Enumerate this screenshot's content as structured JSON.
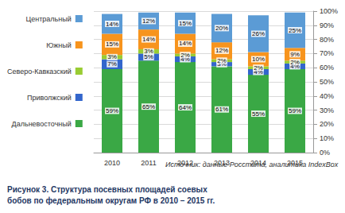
{
  "chart_data": {
    "type": "bar",
    "title": "Рисунок 3. Структура посевных площадей соевых бобов по федеральным округам РФ в 2010 – 2015 гг.",
    "source": "Источник: данные Росстата, аналитика IndexBox",
    "categories": [
      "2010",
      "2011",
      "2012",
      "2013",
      "2014",
      "2015"
    ],
    "stacked": true,
    "data_labels": true,
    "grid": true,
    "legend": "left",
    "series": [
      {
        "name": "Дальневосточный",
        "color": "#3aa845",
        "values": [
          59,
          65,
          64,
          61,
          55,
          59
        ],
        "value_labels": [
          "59%",
          "65%",
          "64%",
          "61%",
          "55%",
          "59%"
        ]
      },
      {
        "name": "Приволжский",
        "color": "#3366cc",
        "values": [
          7,
          5,
          4,
          3,
          4,
          4
        ],
        "value_labels": [
          "7%",
          "5%",
          "4%",
          "3%",
          "4%",
          "4%"
        ]
      },
      {
        "name": "Северо-Кавказский",
        "color": "#99cc33",
        "values": [
          3,
          3,
          2,
          2,
          2,
          2
        ],
        "value_labels": [
          "3%",
          "3%",
          "2%",
          "2%",
          "2%",
          "2%"
        ]
      },
      {
        "name": "Южный",
        "color": "#f7941d",
        "values": [
          15,
          14,
          14,
          12,
          10,
          9
        ],
        "value_labels": [
          "15%",
          "14%",
          "14%",
          "12%",
          "10%",
          "9%"
        ]
      },
      {
        "name": "Центральный",
        "color": "#5b9bd5",
        "values": [
          14,
          12,
          15,
          20,
          26,
          25
        ],
        "value_labels": [
          "14%",
          "12%",
          "15%",
          "20%",
          "26%",
          "25%"
        ]
      }
    ],
    "ylim": [
      0,
      100
    ],
    "yticks": [
      {
        "value": 0,
        "label": "0%"
      },
      {
        "value": 10,
        "label": "10%"
      },
      {
        "value": 20,
        "label": "20%"
      },
      {
        "value": 30,
        "label": "30%"
      },
      {
        "value": 40,
        "label": "40%"
      },
      {
        "value": 50,
        "label": "50%"
      },
      {
        "value": 60,
        "label": "60%"
      },
      {
        "value": 70,
        "label": "70%"
      },
      {
        "value": 80,
        "label": "80%"
      },
      {
        "value": 90,
        "label": "90%"
      },
      {
        "value": 100,
        "label": "100%"
      }
    ]
  }
}
